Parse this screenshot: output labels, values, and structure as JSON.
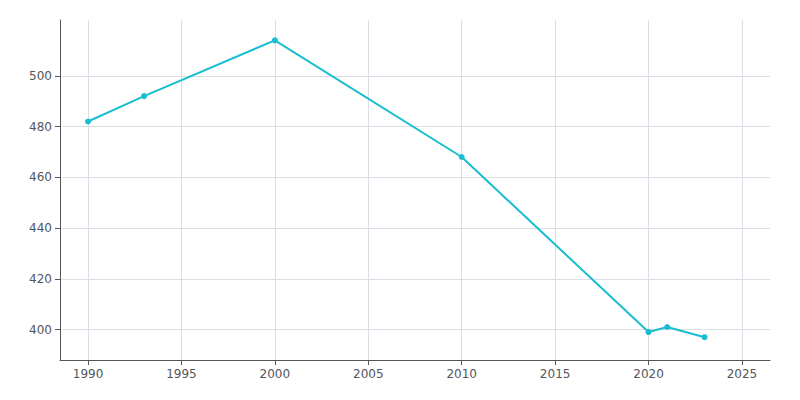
{
  "chart_data": {
    "type": "line",
    "x": [
      1990,
      1993,
      2000,
      2010,
      2020,
      2021,
      2023
    ],
    "values": [
      482,
      492,
      514,
      468,
      399,
      401,
      397
    ],
    "color": "#17becf",
    "marker": "circle",
    "xlim": [
      1988.5,
      2026.5
    ],
    "ylim": [
      388,
      522
    ],
    "xticks": [
      1990,
      1995,
      2000,
      2005,
      2010,
      2015,
      2020,
      2025
    ],
    "yticks": [
      400,
      420,
      440,
      460,
      480,
      500
    ],
    "grid": true
  }
}
